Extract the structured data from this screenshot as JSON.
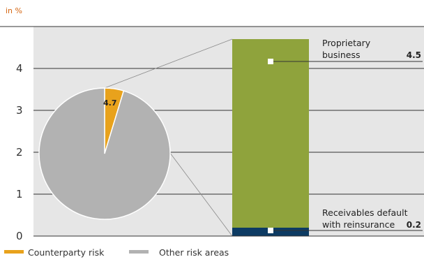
{
  "chart_data": {
    "type": "bar",
    "unit_label": "in %",
    "yticks": [
      0,
      1,
      2,
      3,
      4
    ],
    "ylim": [
      0,
      4.75
    ],
    "pie": {
      "slices": [
        {
          "name": "Counterparty risk",
          "value": 4.7,
          "label": "4.7",
          "color": "#e8a21c"
        },
        {
          "name": "Other risk areas",
          "value": 95.3,
          "label": "",
          "color": "#b2b2b2"
        }
      ]
    },
    "stacked_bar": {
      "segments": [
        {
          "label_lines": [
            "Receivables default",
            "with reinsurance"
          ],
          "value": 0.2,
          "value_label": "0.2",
          "color": "#0d3b63"
        },
        {
          "label_lines": [
            "Proprietary",
            "business"
          ],
          "value": 4.5,
          "value_label": "4.5",
          "color": "#8fa33c"
        }
      ]
    },
    "legend": [
      {
        "name": "Counterparty risk",
        "color": "#e8a21c"
      },
      {
        "name": "Other risk areas",
        "color": "#b2b2b2"
      }
    ],
    "colors": {
      "plot_background": "#e6e6e6",
      "unit_label": "#d4640f",
      "axis_line": "#333333",
      "tick_text": "#333333"
    }
  }
}
